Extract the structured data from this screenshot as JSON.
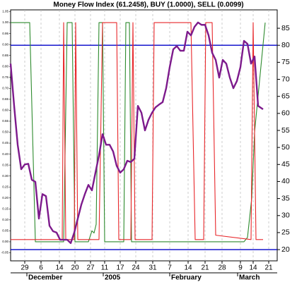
{
  "chart_data": {
    "type": "line",
    "title": "Money Flow Index (61.2458), BUY (1.0000), SELL (0.0099)",
    "xlim": [
      0,
      75.4
    ],
    "xticks": [
      {
        "value": 4,
        "label": "29"
      },
      {
        "value": 8.6,
        "label": "6"
      },
      {
        "value": 13.8,
        "label": "14"
      },
      {
        "value": 18.2,
        "label": "20"
      },
      {
        "value": 22.6,
        "label": "27"
      },
      {
        "value": 26.6,
        "label": "11"
      },
      {
        "value": 31,
        "label": "17"
      },
      {
        "value": 35.4,
        "label": "24"
      },
      {
        "value": 40.2,
        "label": "31"
      },
      {
        "value": 45,
        "label": "7"
      },
      {
        "value": 50.2,
        "label": "14"
      },
      {
        "value": 55,
        "label": "21"
      },
      {
        "value": 59.8,
        "label": "28"
      },
      {
        "value": 65,
        "label": "9"
      },
      {
        "value": 68.6,
        "label": "14"
      },
      {
        "value": 73,
        "label": "21"
      }
    ],
    "xlabels2": [
      {
        "value": 4.6,
        "label": "December"
      },
      {
        "value": 26.2,
        "label": "2005"
      },
      {
        "value": 45,
        "label": "February"
      },
      {
        "value": 64.2,
        "label": "March"
      }
    ],
    "ylim": [
      16.7,
      90.4
    ],
    "yticks": [
      85,
      80,
      75,
      70,
      65,
      60,
      55,
      50,
      45,
      40,
      35,
      30,
      25,
      20
    ],
    "y2lim": [
      -0.087,
      1.058
    ],
    "y2ticks": [
      {
        "value": 1.05,
        "label": "1.05"
      },
      {
        "value": 1,
        "label": "1.00"
      },
      {
        "value": 0.95,
        "label": "0.95"
      },
      {
        "value": 0.9,
        "label": "0.90"
      },
      {
        "value": 0.85,
        "label": "0.85"
      },
      {
        "value": 0.8,
        "label": "0.80"
      },
      {
        "value": 0.75,
        "label": "0.75"
      },
      {
        "value": 0.7,
        "label": "0.70"
      },
      {
        "value": 0.65,
        "label": "0.65"
      },
      {
        "value": 0.6,
        "label": "0.60"
      },
      {
        "value": 0.55,
        "label": "0.55"
      },
      {
        "value": 0.5,
        "label": "0.50"
      },
      {
        "value": 0.45,
        "label": "0.45"
      },
      {
        "value": 0.4,
        "label": "0.40"
      },
      {
        "value": 0.35,
        "label": "0.35"
      },
      {
        "value": 0.3,
        "label": "0.30"
      },
      {
        "value": 0.25,
        "label": "0.25"
      },
      {
        "value": 0.2,
        "label": "0.20"
      },
      {
        "value": 0.15,
        "label": "0.15"
      },
      {
        "value": 0.1,
        "label": "0.10"
      },
      {
        "value": 0.05,
        "label": "0.05"
      },
      {
        "value": 0,
        "label": "0.00"
      },
      {
        "value": -0.05,
        "label": "-0.05"
      }
    ],
    "hlines": [
      80,
      20
    ],
    "hline_color": "#0000c8",
    "grid": true,
    "series": [
      {
        "color": "#2e8b2e",
        "axis": "y2",
        "x": [
          0,
          5.4,
          7,
          15,
          16,
          17.4,
          18.2,
          22,
          23,
          23.6,
          24.2,
          25,
          26,
          26.6,
          32,
          32.6,
          33.6,
          34.2,
          66,
          67,
          68.2,
          69,
          72
        ],
        "values": [
          1,
          1,
          0,
          0,
          1,
          1,
          0,
          0,
          0.05,
          0.04,
          0.08,
          1,
          1,
          0,
          0,
          1,
          1,
          0,
          0,
          0.02,
          0.2,
          0.5,
          1
        ]
      },
      {
        "color": "#e8272b",
        "axis": "y2",
        "x": [
          0,
          14.6,
          15,
          15.6,
          18,
          18.4,
          19,
          25,
          26,
          30,
          30.6,
          34,
          34.6,
          35.2,
          40,
          40.6,
          51,
          52.2,
          54.6,
          55.2,
          57,
          58,
          68,
          68.6,
          69.4,
          71.4
        ],
        "values": [
          0.01,
          0.01,
          1,
          0.01,
          0.01,
          1,
          0.01,
          0.01,
          1,
          1,
          0.01,
          0.01,
          1,
          0.01,
          0.01,
          1,
          1,
          0.01,
          0.01,
          1,
          1,
          0.03,
          0.01,
          1,
          0.01,
          0.01
        ]
      },
      {
        "color": "#7d1a8c",
        "x": [
          0,
          1,
          2,
          3,
          4,
          5,
          6,
          7,
          8,
          9,
          10,
          11,
          12,
          13,
          14,
          15,
          16,
          17,
          18,
          19,
          20,
          21,
          22,
          23,
          24,
          25,
          26,
          27,
          28,
          29,
          30,
          31,
          32,
          33,
          34,
          35,
          36,
          37,
          38,
          39,
          40,
          41,
          42,
          43,
          44,
          45,
          46,
          47,
          48,
          49,
          50,
          51,
          52,
          53,
          54,
          55,
          56,
          57,
          58,
          59,
          60,
          61,
          62,
          63,
          64,
          65,
          66,
          67,
          68,
          69,
          70,
          71.4
        ],
        "values": [
          74.6,
          62.2,
          50.8,
          43.6,
          45.0,
          45.2,
          40.5,
          39.9,
          29.1,
          36.3,
          35.7,
          27.0,
          25.4,
          25.0,
          22.9,
          22.9,
          22.9,
          21.9,
          25.0,
          29.1,
          33.2,
          36.3,
          39.0,
          37.4,
          42.6,
          47.7,
          53.9,
          50.8,
          50.8,
          48.8,
          44.6,
          42.6,
          43.6,
          46.1,
          45.7,
          46.7,
          62.2,
          60.2,
          55.0,
          58.1,
          60.2,
          61.8,
          62.6,
          63.3,
          67.4,
          73.6,
          78.8,
          79.8,
          78.4,
          78.4,
          84.0,
          82.9,
          85.4,
          86.7,
          86.0,
          86.0,
          82.9,
          77.8,
          75.7,
          70.5,
          75.7,
          74.6,
          70.5,
          67.4,
          69.5,
          73.6,
          81.3,
          80.4,
          74.6,
          76.7,
          62.2,
          61.2
        ]
      }
    ]
  }
}
